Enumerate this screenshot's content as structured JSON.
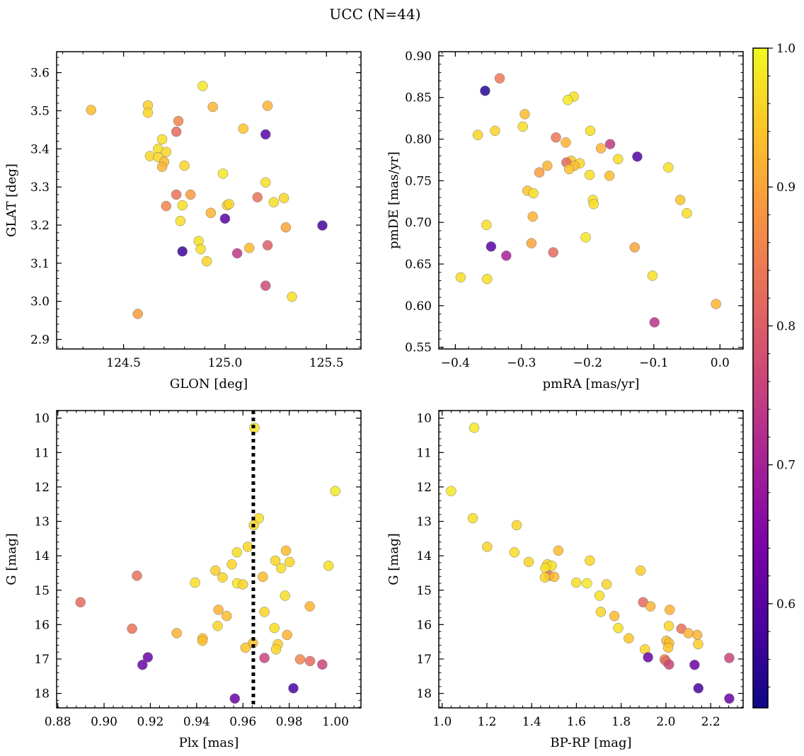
{
  "chart_data": {
    "title": "UCC (N=44)",
    "colorbar": {
      "colormap": "plasma",
      "range": [
        0.525,
        1.0
      ],
      "ticks": [
        "1.0",
        "0.9",
        "0.8",
        "0.7",
        "0.6"
      ],
      "tick_values": [
        1.0,
        0.9,
        0.8,
        0.7,
        0.6
      ]
    },
    "panels": [
      {
        "type": "scatter",
        "xlabel": "GLON [deg]",
        "ylabel": "GLAT [deg]",
        "xlim": [
          124.17,
          125.67
        ],
        "ylim": [
          2.875,
          3.655
        ],
        "xticks": [
          124.5,
          125.0,
          125.5
        ],
        "xtick_labels": [
          "124.5",
          "125.0",
          "125.5"
        ],
        "yticks": [
          2.9,
          3.0,
          3.1,
          3.2,
          3.3,
          3.4,
          3.5,
          3.6
        ],
        "ytick_labels": [
          "2.9",
          "3.0",
          "3.1",
          "3.2",
          "3.3",
          "3.4",
          "3.5",
          "3.6"
        ],
        "points": [
          [
            124.34,
            3.502,
            0.93
          ],
          [
            124.62,
            3.514,
            0.95
          ],
          [
            124.62,
            3.495,
            0.96
          ],
          [
            124.89,
            3.565,
            0.98
          ],
          [
            124.94,
            3.51,
            0.92
          ],
          [
            125.21,
            3.513,
            0.92
          ],
          [
            124.77,
            3.473,
            0.86
          ],
          [
            125.09,
            3.453,
            0.94
          ],
          [
            124.76,
            3.445,
            0.82
          ],
          [
            125.2,
            3.438,
            0.6
          ],
          [
            124.69,
            3.425,
            0.97
          ],
          [
            124.67,
            3.4,
            0.97
          ],
          [
            124.71,
            3.392,
            0.96
          ],
          [
            124.63,
            3.381,
            0.96
          ],
          [
            124.67,
            3.378,
            0.96
          ],
          [
            124.7,
            3.366,
            0.93
          ],
          [
            124.8,
            3.356,
            0.96
          ],
          [
            124.69,
            3.353,
            0.92
          ],
          [
            124.99,
            3.335,
            0.98
          ],
          [
            125.2,
            3.312,
            0.97
          ],
          [
            124.76,
            3.28,
            0.83
          ],
          [
            124.83,
            3.28,
            0.89
          ],
          [
            125.16,
            3.273,
            0.83
          ],
          [
            125.29,
            3.271,
            0.96
          ],
          [
            125.24,
            3.26,
            0.97
          ],
          [
            124.71,
            3.25,
            0.86
          ],
          [
            124.79,
            3.252,
            0.97
          ],
          [
            125.01,
            3.252,
            0.95
          ],
          [
            125.02,
            3.255,
            0.96
          ],
          [
            124.93,
            3.232,
            0.92
          ],
          [
            124.78,
            3.211,
            0.97
          ],
          [
            125.0,
            3.217,
            0.6
          ],
          [
            125.48,
            3.199,
            0.58
          ],
          [
            125.3,
            3.194,
            0.9
          ],
          [
            124.87,
            3.158,
            0.97
          ],
          [
            125.21,
            3.147,
            0.8
          ],
          [
            124.88,
            3.137,
            0.97
          ],
          [
            125.12,
            3.14,
            0.93
          ],
          [
            124.79,
            3.131,
            0.57
          ],
          [
            125.06,
            3.126,
            0.74
          ],
          [
            124.91,
            3.105,
            0.96
          ],
          [
            125.2,
            3.041,
            0.77
          ],
          [
            125.33,
            3.012,
            0.97
          ],
          [
            124.57,
            2.967,
            0.89
          ]
        ]
      },
      {
        "type": "scatter",
        "xlabel": "pmRA [mas/yr]",
        "ylabel": "pmDE [mas/yr]",
        "xlim": [
          -0.425,
          0.035
        ],
        "ylim": [
          0.548,
          0.905
        ],
        "xticks": [
          -0.4,
          -0.3,
          -0.2,
          -0.1,
          0.0
        ],
        "xtick_labels": [
          "−0.4",
          "−0.3",
          "−0.2",
          "−0.1",
          "0.0"
        ],
        "yticks": [
          0.55,
          0.6,
          0.65,
          0.7,
          0.75,
          0.8,
          0.85,
          0.9
        ],
        "ytick_labels": [
          "0.55",
          "0.60",
          "0.65",
          "0.70",
          "0.75",
          "0.80",
          "0.85",
          "0.90"
        ],
        "points": [
          [
            -0.333,
            0.873,
            0.84
          ],
          [
            -0.355,
            0.858,
            0.55
          ],
          [
            -0.221,
            0.851,
            0.97
          ],
          [
            -0.23,
            0.847,
            0.98
          ],
          [
            -0.295,
            0.83,
            0.93
          ],
          [
            -0.298,
            0.815,
            0.97
          ],
          [
            -0.34,
            0.81,
            0.96
          ],
          [
            -0.366,
            0.805,
            0.96
          ],
          [
            -0.196,
            0.81,
            0.97
          ],
          [
            -0.248,
            0.802,
            0.84
          ],
          [
            -0.233,
            0.796,
            0.92
          ],
          [
            -0.166,
            0.794,
            0.74
          ],
          [
            -0.18,
            0.789,
            0.92
          ],
          [
            -0.125,
            0.779,
            0.59
          ],
          [
            -0.154,
            0.776,
            0.97
          ],
          [
            -0.225,
            0.774,
            0.95
          ],
          [
            -0.232,
            0.772,
            0.82
          ],
          [
            -0.212,
            0.771,
            0.96
          ],
          [
            -0.22,
            0.768,
            0.93
          ],
          [
            -0.261,
            0.768,
            0.92
          ],
          [
            -0.228,
            0.764,
            0.94
          ],
          [
            -0.078,
            0.766,
            0.97
          ],
          [
            -0.273,
            0.76,
            0.89
          ],
          [
            -0.197,
            0.757,
            0.97
          ],
          [
            -0.167,
            0.756,
            0.93
          ],
          [
            -0.291,
            0.738,
            0.94
          ],
          [
            -0.282,
            0.735,
            0.97
          ],
          [
            -0.192,
            0.727,
            0.97
          ],
          [
            -0.06,
            0.727,
            0.94
          ],
          [
            -0.191,
            0.722,
            0.97
          ],
          [
            -0.05,
            0.711,
            0.97
          ],
          [
            -0.283,
            0.707,
            0.92
          ],
          [
            -0.353,
            0.697,
            0.97
          ],
          [
            -0.203,
            0.682,
            0.98
          ],
          [
            -0.285,
            0.675,
            0.9
          ],
          [
            -0.346,
            0.671,
            0.6
          ],
          [
            -0.129,
            0.67,
            0.9
          ],
          [
            -0.252,
            0.664,
            0.82
          ],
          [
            -0.323,
            0.66,
            0.7
          ],
          [
            -0.102,
            0.636,
            0.97
          ],
          [
            -0.392,
            0.634,
            0.97
          ],
          [
            -0.352,
            0.632,
            0.97
          ],
          [
            -0.006,
            0.602,
            0.92
          ],
          [
            -0.099,
            0.58,
            0.73
          ]
        ]
      },
      {
        "type": "scatter",
        "xlabel": "Plx [mas]",
        "ylabel": "G [mag]",
        "xlim": [
          0.8795,
          1.011
        ],
        "ylim": [
          9.78,
          18.42
        ],
        "invert_y": true,
        "xticks": [
          0.88,
          0.9,
          0.92,
          0.94,
          0.96,
          0.98,
          1.0
        ],
        "xtick_labels": [
          "0.88",
          "0.90",
          "0.92",
          "0.94",
          "0.96",
          "0.98",
          "1.00"
        ],
        "yticks": [
          10,
          11,
          12,
          13,
          14,
          15,
          16,
          17,
          18
        ],
        "ytick_labels": [
          "10",
          "11",
          "12",
          "13",
          "14",
          "15",
          "16",
          "17",
          "18"
        ],
        "vline": 0.9645,
        "points": [
          [
            0.965,
            10.28,
            0.98
          ],
          [
            0.9999,
            12.12,
            0.98
          ],
          [
            0.9669,
            12.91,
            0.97
          ],
          [
            0.9647,
            13.11,
            0.96
          ],
          [
            0.9621,
            13.74,
            0.96
          ],
          [
            0.9574,
            13.9,
            0.97
          ],
          [
            0.9786,
            13.85,
            0.93
          ],
          [
            0.974,
            14.14,
            0.96
          ],
          [
            0.9802,
            14.18,
            0.96
          ],
          [
            0.9552,
            14.25,
            0.96
          ],
          [
            0.9765,
            14.36,
            0.97
          ],
          [
            0.9481,
            14.43,
            0.95
          ],
          [
            0.997,
            14.29,
            0.97
          ],
          [
            0.9142,
            14.58,
            0.83
          ],
          [
            0.9512,
            14.63,
            0.96
          ],
          [
            0.9686,
            14.61,
            0.93
          ],
          [
            0.9393,
            14.78,
            0.97
          ],
          [
            0.9575,
            14.8,
            0.98
          ],
          [
            0.96,
            14.83,
            0.96
          ],
          [
            0.9782,
            15.16,
            0.97
          ],
          [
            0.8898,
            15.35,
            0.82
          ],
          [
            0.9889,
            15.47,
            0.92
          ],
          [
            0.9693,
            15.63,
            0.96
          ],
          [
            0.9494,
            15.57,
            0.92
          ],
          [
            0.953,
            15.75,
            0.93
          ],
          [
            0.9491,
            16.04,
            0.96
          ],
          [
            0.9736,
            16.1,
            0.97
          ],
          [
            0.9121,
            16.12,
            0.83
          ],
          [
            0.9791,
            16.3,
            0.92
          ],
          [
            0.9314,
            16.25,
            0.92
          ],
          [
            0.9426,
            16.4,
            0.94
          ],
          [
            0.9425,
            16.47,
            0.93
          ],
          [
            0.9643,
            16.54,
            0.93
          ],
          [
            0.9751,
            16.57,
            0.95
          ],
          [
            0.9611,
            16.67,
            0.94
          ],
          [
            0.9743,
            16.72,
            0.96
          ],
          [
            0.9189,
            16.95,
            0.62
          ],
          [
            0.9693,
            16.97,
            0.76
          ],
          [
            0.9847,
            17.01,
            0.86
          ],
          [
            0.989,
            17.06,
            0.82
          ],
          [
            0.9943,
            17.16,
            0.76
          ],
          [
            0.9166,
            17.17,
            0.62
          ],
          [
            0.9818,
            17.85,
            0.58
          ],
          [
            0.9565,
            18.15,
            0.62
          ]
        ]
      },
      {
        "type": "scatter",
        "xlabel": "BP-RP [mag]",
        "ylabel": "G [mag]",
        "xlim": [
          0.985,
          2.345
        ],
        "ylim": [
          9.78,
          18.42
        ],
        "invert_y": true,
        "xticks": [
          1.0,
          1.2,
          1.4,
          1.6,
          1.8,
          2.0,
          2.2
        ],
        "xtick_labels": [
          "1.0",
          "1.2",
          "1.4",
          "1.6",
          "1.8",
          "2.0",
          "2.2"
        ],
        "yticks": [
          10,
          11,
          12,
          13,
          14,
          15,
          16,
          17,
          18
        ],
        "ytick_labels": [
          "10",
          "11",
          "12",
          "13",
          "14",
          "15",
          "16",
          "17",
          "18"
        ],
        "points": [
          [
            1.143,
            10.28,
            0.98
          ],
          [
            1.04,
            12.12,
            0.98
          ],
          [
            1.137,
            12.91,
            0.97
          ],
          [
            1.333,
            13.11,
            0.96
          ],
          [
            1.201,
            13.74,
            0.96
          ],
          [
            1.323,
            13.9,
            0.97
          ],
          [
            1.519,
            13.85,
            0.93
          ],
          [
            1.66,
            14.14,
            0.96
          ],
          [
            1.387,
            14.18,
            0.96
          ],
          [
            1.47,
            14.25,
            0.96
          ],
          [
            1.49,
            14.29,
            0.97
          ],
          [
            1.461,
            14.36,
            0.97
          ],
          [
            1.887,
            14.43,
            0.95
          ],
          [
            1.478,
            14.58,
            0.83
          ],
          [
            1.459,
            14.63,
            0.96
          ],
          [
            1.501,
            14.61,
            0.93
          ],
          [
            1.599,
            14.78,
            0.97
          ],
          [
            1.647,
            14.8,
            0.98
          ],
          [
            1.735,
            14.83,
            0.96
          ],
          [
            1.703,
            15.16,
            0.97
          ],
          [
            1.898,
            15.35,
            0.82
          ],
          [
            1.931,
            15.47,
            0.92
          ],
          [
            1.709,
            15.63,
            0.96
          ],
          [
            2.017,
            15.57,
            0.92
          ],
          [
            1.77,
            15.75,
            0.93
          ],
          [
            2.013,
            16.04,
            0.96
          ],
          [
            1.787,
            16.1,
            0.97
          ],
          [
            2.069,
            16.12,
            0.83
          ],
          [
            2.14,
            16.3,
            0.92
          ],
          [
            2.1,
            16.25,
            0.92
          ],
          [
            1.834,
            16.4,
            0.94
          ],
          [
            2.002,
            16.47,
            0.93
          ],
          [
            2.014,
            16.54,
            0.93
          ],
          [
            2.144,
            16.57,
            0.95
          ],
          [
            2.01,
            16.67,
            0.94
          ],
          [
            1.906,
            16.72,
            0.96
          ],
          [
            1.92,
            16.95,
            0.62
          ],
          [
            2.283,
            16.97,
            0.76
          ],
          [
            1.994,
            17.01,
            0.86
          ],
          [
            2.0,
            17.06,
            0.82
          ],
          [
            2.014,
            17.16,
            0.76
          ],
          [
            2.128,
            17.17,
            0.62
          ],
          [
            2.145,
            17.85,
            0.58
          ],
          [
            2.283,
            18.15,
            0.62
          ]
        ]
      }
    ]
  }
}
